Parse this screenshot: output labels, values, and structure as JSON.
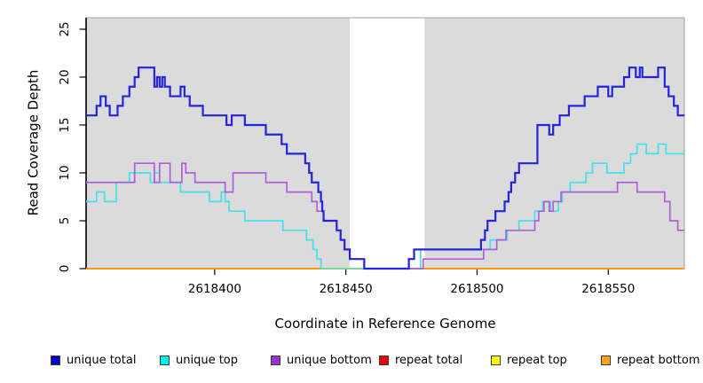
{
  "chart_data": {
    "type": "line",
    "subtype": "step-coverage",
    "title": "",
    "xlabel": "Coordinate in Reference Genome",
    "ylabel": "Read Coverage Depth",
    "xlim": [
      2618351,
      2618579
    ],
    "ylim": [
      0,
      26.2
    ],
    "xticks": [
      2618400,
      2618450,
      2618500,
      2618550
    ],
    "yticks": [
      0,
      5,
      10,
      15,
      20,
      25
    ],
    "grid": false,
    "panel_bg": "#DBDBDB",
    "panel_border": "#9C9C9C",
    "gap_band": {
      "x1": 2618451.5,
      "x2": 2618480,
      "color": "#FFFFFF"
    },
    "overlap_artifact": {
      "note": "cyan zero-depth run blended with orange baseline",
      "x1": 2618440.5,
      "x2": 2618478.5,
      "y": 0,
      "color": "#7FD59B",
      "width": 2
    },
    "series": [
      {
        "name": "repeat total",
        "color": "#DD0000",
        "width": 1.5,
        "points": [
          [
            2618351,
            0
          ]
        ]
      },
      {
        "name": "repeat top",
        "color": "#EEEE00",
        "width": 1.5,
        "points": [
          [
            2618351,
            0
          ]
        ]
      },
      {
        "name": "repeat bottom",
        "color": "#FF9912",
        "width": 2,
        "points": [
          [
            2618351,
            0
          ]
        ]
      },
      {
        "name": "unique top",
        "color": "#45DFEE",
        "width": 1.7,
        "points": [
          [
            2618351,
            7
          ],
          [
            2618355,
            8
          ],
          [
            2618358,
            7
          ],
          [
            2618362.5,
            9
          ],
          [
            2618367.5,
            10
          ],
          [
            2618375.5,
            9
          ],
          [
            2618377,
            10
          ],
          [
            2618379,
            9
          ],
          [
            2618387,
            8
          ],
          [
            2618398,
            7
          ],
          [
            2618402.5,
            8
          ],
          [
            2618404,
            7
          ],
          [
            2618405.5,
            6
          ],
          [
            2618411.5,
            5
          ],
          [
            2618426,
            4
          ],
          [
            2618435,
            3
          ],
          [
            2618437.5,
            2
          ],
          [
            2618439,
            1
          ],
          [
            2618440.5,
            0
          ],
          [
            2618478.5,
            2
          ],
          [
            2618505,
            3
          ],
          [
            2618511.5,
            4
          ],
          [
            2618516,
            5
          ],
          [
            2618522,
            6
          ],
          [
            2618525,
            7
          ],
          [
            2618528,
            6
          ],
          [
            2618531,
            7
          ],
          [
            2618532.5,
            8
          ],
          [
            2618535.5,
            9
          ],
          [
            2618541.5,
            10
          ],
          [
            2618544,
            11
          ],
          [
            2618549.5,
            10
          ],
          [
            2618556,
            11
          ],
          [
            2618558.5,
            12
          ],
          [
            2618561,
            13
          ],
          [
            2618564.5,
            12
          ],
          [
            2618569,
            13
          ],
          [
            2618572,
            12
          ]
        ]
      },
      {
        "name": "unique bottom",
        "color": "#AC61D9",
        "width": 1.7,
        "points": [
          [
            2618351,
            9
          ],
          [
            2618369.5,
            11
          ],
          [
            2618377,
            9
          ],
          [
            2618379,
            11
          ],
          [
            2618383,
            9
          ],
          [
            2618387.5,
            11
          ],
          [
            2618389,
            10
          ],
          [
            2618392.5,
            9
          ],
          [
            2618404,
            8
          ],
          [
            2618407,
            10
          ],
          [
            2618419.5,
            9
          ],
          [
            2618427.5,
            8
          ],
          [
            2618437,
            7
          ],
          [
            2618439,
            6
          ],
          [
            2618441.5,
            5
          ],
          [
            2618446.5,
            4
          ],
          [
            2618448,
            3
          ],
          [
            2618449.5,
            2
          ],
          [
            2618451.5,
            1
          ],
          [
            2618457,
            0
          ],
          [
            2618479.5,
            1
          ],
          [
            2618502.5,
            2
          ],
          [
            2618507.5,
            3
          ],
          [
            2618511,
            4
          ],
          [
            2618522,
            5
          ],
          [
            2618523.5,
            6
          ],
          [
            2618525.5,
            7
          ],
          [
            2618527.5,
            6
          ],
          [
            2618529,
            7
          ],
          [
            2618532,
            8
          ],
          [
            2618553.5,
            9
          ],
          [
            2618561,
            8
          ],
          [
            2618571.5,
            7
          ],
          [
            2618573.5,
            5
          ],
          [
            2618576.5,
            4
          ]
        ]
      },
      {
        "name": "unique total",
        "color": "#2424DC",
        "width": 2.2,
        "points": [
          [
            2618351,
            16
          ],
          [
            2618355,
            17
          ],
          [
            2618356.5,
            18
          ],
          [
            2618358.5,
            17
          ],
          [
            2618360,
            16
          ],
          [
            2618363,
            17
          ],
          [
            2618365,
            18
          ],
          [
            2618367.5,
            19
          ],
          [
            2618369.5,
            20
          ],
          [
            2618371,
            21
          ],
          [
            2618377,
            19
          ],
          [
            2618378,
            20
          ],
          [
            2618379,
            19
          ],
          [
            2618380,
            20
          ],
          [
            2618381,
            19
          ],
          [
            2618383,
            18
          ],
          [
            2618387,
            19
          ],
          [
            2618388.5,
            18
          ],
          [
            2618390.5,
            17
          ],
          [
            2618395.5,
            16
          ],
          [
            2618404.5,
            15
          ],
          [
            2618406.5,
            16
          ],
          [
            2618411.5,
            15
          ],
          [
            2618419.5,
            14
          ],
          [
            2618425.5,
            13
          ],
          [
            2618427.5,
            12
          ],
          [
            2618434.5,
            11
          ],
          [
            2618436,
            10
          ],
          [
            2618437,
            9
          ],
          [
            2618439.5,
            8
          ],
          [
            2618440.5,
            7
          ],
          [
            2618441,
            6
          ],
          [
            2618441.5,
            5
          ],
          [
            2618446.5,
            4
          ],
          [
            2618448,
            3
          ],
          [
            2618449.5,
            2
          ],
          [
            2618451.5,
            1
          ],
          [
            2618457,
            0
          ],
          [
            2618474,
            1
          ],
          [
            2618476,
            2
          ],
          [
            2618501.5,
            3
          ],
          [
            2618503,
            4
          ],
          [
            2618504,
            5
          ],
          [
            2618507,
            6
          ],
          [
            2618510.5,
            7
          ],
          [
            2618512,
            8
          ],
          [
            2618513,
            9
          ],
          [
            2618514.5,
            10
          ],
          [
            2618516,
            11
          ],
          [
            2618523,
            15
          ],
          [
            2618527.5,
            14
          ],
          [
            2618529,
            15
          ],
          [
            2618531.5,
            16
          ],
          [
            2618535,
            17
          ],
          [
            2618541,
            18
          ],
          [
            2618546,
            19
          ],
          [
            2618550,
            18
          ],
          [
            2618551.5,
            19
          ],
          [
            2618556,
            20
          ],
          [
            2618558,
            21
          ],
          [
            2618560.5,
            20
          ],
          [
            2618562,
            21
          ],
          [
            2618563,
            20
          ],
          [
            2618569,
            21
          ],
          [
            2618571.5,
            19
          ],
          [
            2618573,
            18
          ],
          [
            2618575,
            17
          ],
          [
            2618576.5,
            16
          ]
        ]
      }
    ]
  },
  "legend": {
    "items": [
      {
        "label": "unique total",
        "color": "#0000CD"
      },
      {
        "label": "unique top",
        "color": "#00EEEE"
      },
      {
        "label": "unique bottom",
        "color": "#9932CC"
      },
      {
        "label": "repeat total",
        "color": "#EE0000"
      },
      {
        "label": "repeat top",
        "color": "#FFFF00"
      },
      {
        "label": "repeat bottom",
        "color": "#FFA319"
      }
    ]
  }
}
